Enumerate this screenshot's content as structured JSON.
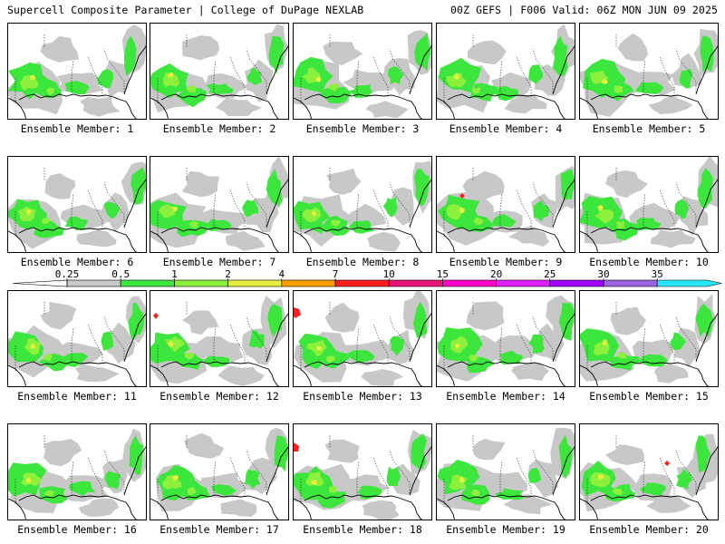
{
  "header": {
    "title_left": "Supercell Composite Parameter | College of DuPage NEXLAB",
    "title_right": "00Z GEFS | F006 Valid: 06Z MON JUN 09 2025"
  },
  "members": [
    {
      "label": "Ensemble Member: 1"
    },
    {
      "label": "Ensemble Member: 2"
    },
    {
      "label": "Ensemble Member: 3"
    },
    {
      "label": "Ensemble Member: 4"
    },
    {
      "label": "Ensemble Member: 5"
    },
    {
      "label": "Ensemble Member: 6"
    },
    {
      "label": "Ensemble Member: 7"
    },
    {
      "label": "Ensemble Member: 8"
    },
    {
      "label": "Ensemble Member: 9"
    },
    {
      "label": "Ensemble Member: 10"
    },
    {
      "label": "Ensemble Member: 11"
    },
    {
      "label": "Ensemble Member: 12"
    },
    {
      "label": "Ensemble Member: 13"
    },
    {
      "label": "Ensemble Member: 14"
    },
    {
      "label": "Ensemble Member: 15"
    },
    {
      "label": "Ensemble Member: 16"
    },
    {
      "label": "Ensemble Member: 17"
    },
    {
      "label": "Ensemble Member: 18"
    },
    {
      "label": "Ensemble Member: 19"
    },
    {
      "label": "Ensemble Member: 20"
    }
  ],
  "colorbar": {
    "ticks": [
      "0.25",
      "0.5",
      "1",
      "2",
      "4",
      "7",
      "10",
      "15",
      "20",
      "25",
      "30",
      "35"
    ],
    "colors": [
      "#c8c8c8",
      "#3ce63c",
      "#8cf03c",
      "#e6f03c",
      "#ffa000",
      "#ff1e1e",
      "#e61478",
      "#ff00c8",
      "#e11eff",
      "#a000ff",
      "#9b64e6",
      "#28e6ff"
    ],
    "under_color": "#ffffff"
  }
}
